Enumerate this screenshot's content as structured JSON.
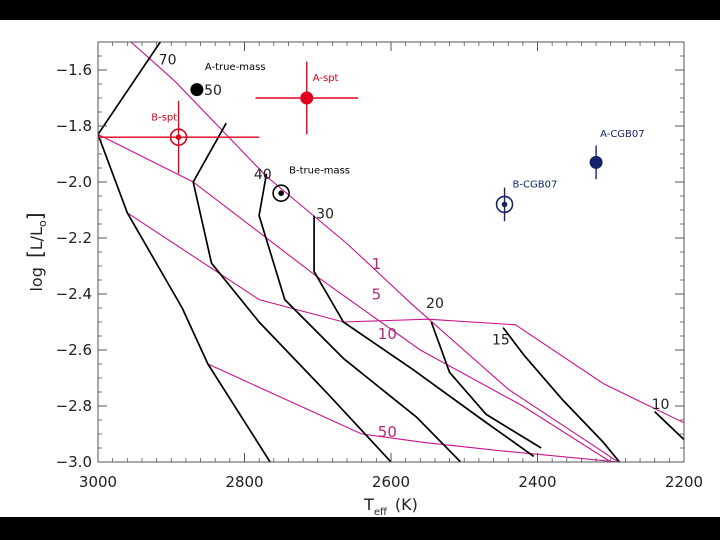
{
  "chart_data": {
    "type": "line",
    "xlabel_main": "T",
    "xlabel_sub": "eff",
    "xlabel_unit": "(K)",
    "ylabel_prefix": "log",
    "ylabel_L": "L",
    "ylabel_slash": "/",
    "ylabel_Lo": "L",
    "ylabel_sun": "o",
    "xlim": [
      3000,
      2200
    ],
    "ylim": [
      -3.0,
      -1.5
    ],
    "x_ticks": [
      3000,
      2800,
      2600,
      2400,
      2200
    ],
    "x_tick_labels": [
      "3000",
      "2800",
      "2600",
      "2400",
      "2200"
    ],
    "y_ticks": [
      -1.6,
      -1.8,
      -2.0,
      -2.2,
      -2.4,
      -2.6,
      -2.8,
      -3.0
    ],
    "y_tick_labels": [
      "−1.6",
      "−1.8",
      "−2.0",
      "−2.2",
      "−2.4",
      "−2.6",
      "−2.8",
      "−3.0"
    ],
    "colors": {
      "tracks": "#000000",
      "isochrones": "#c8148c",
      "isochrone_labels": "#b4287a",
      "spt": "#e0001c",
      "cgb": "#16236b",
      "true_mass": "#000000"
    },
    "mass_tracks": [
      {
        "label": "70",
        "points": [
          [
            2915,
            -1.5
          ],
          [
            3000,
            -1.83
          ],
          [
            2960,
            -2.11
          ],
          [
            2885,
            -2.45
          ],
          [
            2850,
            -2.65
          ],
          [
            2765,
            -3.0
          ]
        ]
      },
      {
        "label": "50",
        "points": [
          [
            2825,
            -1.79
          ],
          [
            2870,
            -2.0
          ],
          [
            2845,
            -2.29
          ],
          [
            2780,
            -2.5
          ],
          [
            2685,
            -2.76
          ],
          [
            2600,
            -3.0
          ]
        ]
      },
      {
        "label": "40",
        "points": [
          [
            2770,
            -1.97
          ],
          [
            2780,
            -2.12
          ],
          [
            2745,
            -2.42
          ],
          [
            2665,
            -2.63
          ],
          [
            2565,
            -2.84
          ],
          [
            2505,
            -3.0
          ]
        ]
      },
      {
        "label": "30",
        "points": [
          [
            2705,
            -2.12
          ],
          [
            2705,
            -2.32
          ],
          [
            2665,
            -2.5
          ],
          [
            2570,
            -2.67
          ],
          [
            2475,
            -2.85
          ],
          [
            2405,
            -2.98
          ]
        ]
      },
      {
        "label": "20",
        "points": [
          [
            2545,
            -2.5
          ],
          [
            2520,
            -2.68
          ],
          [
            2470,
            -2.83
          ],
          [
            2395,
            -2.95
          ]
        ]
      },
      {
        "label": "15",
        "points": [
          [
            2447,
            -2.52
          ],
          [
            2418,
            -2.62
          ],
          [
            2365,
            -2.78
          ],
          [
            2310,
            -2.93
          ],
          [
            2288,
            -3.0
          ]
        ]
      },
      {
        "label": "10",
        "points": [
          [
            2240,
            -2.82
          ],
          [
            2200,
            -2.92
          ]
        ]
      }
    ],
    "isochrones": [
      {
        "label": "1",
        "points": [
          [
            2955,
            -1.5
          ],
          [
            2895,
            -1.64
          ],
          [
            2770,
            -1.98
          ],
          [
            2660,
            -2.22
          ],
          [
            2570,
            -2.44
          ],
          [
            2440,
            -2.74
          ],
          [
            2330,
            -2.93
          ],
          [
            2290,
            -3.0
          ]
        ]
      },
      {
        "label": "5",
        "points": [
          [
            3000,
            -1.83
          ],
          [
            2870,
            -2.0
          ],
          [
            2700,
            -2.34
          ],
          [
            2560,
            -2.6
          ],
          [
            2420,
            -2.8
          ],
          [
            2300,
            -3.0
          ]
        ]
      },
      {
        "label": "10",
        "points": [
          [
            2960,
            -2.11
          ],
          [
            2780,
            -2.42
          ],
          [
            2665,
            -2.5
          ],
          [
            2550,
            -2.49
          ],
          [
            2430,
            -2.51
          ],
          [
            2310,
            -2.72
          ],
          [
            2200,
            -2.86
          ]
        ]
      },
      {
        "label": "50",
        "points": [
          [
            2850,
            -2.65
          ],
          [
            2640,
            -2.9
          ],
          [
            2555,
            -2.93
          ],
          [
            2450,
            -2.96
          ],
          [
            2290,
            -3.0
          ]
        ]
      }
    ],
    "mass_track_labels": [
      {
        "text": "70",
        "x": 2905,
        "y": -1.58
      },
      {
        "text": "50",
        "x": 2843,
        "y": -1.69
      },
      {
        "text": "40",
        "x": 2775,
        "y": -1.99
      },
      {
        "text": "30",
        "x": 2690,
        "y": -2.13
      },
      {
        "text": "20",
        "x": 2540,
        "y": -2.45
      },
      {
        "text": "15",
        "x": 2450,
        "y": -2.58
      },
      {
        "text": "10",
        "x": 2232,
        "y": -2.81
      }
    ],
    "isochrone_label_positions": [
      {
        "text": "1",
        "x": 2620,
        "y": -2.31
      },
      {
        "text": "5",
        "x": 2620,
        "y": -2.42
      },
      {
        "text": "10",
        "x": 2605,
        "y": -2.56
      },
      {
        "text": "50",
        "x": 2605,
        "y": -2.91
      }
    ],
    "objects": [
      {
        "name": "A-spt",
        "x": 2715,
        "y": -1.7,
        "xerr": 70,
        "yerr": 0.13,
        "style": "spt",
        "ring": false,
        "label_x": 2715,
        "label_y": -1.64,
        "label_dx": 6
      },
      {
        "name": "B-spt",
        "x": 2890,
        "y": -1.84,
        "xerr": 110,
        "yerr": 0.13,
        "style": "spt",
        "ring": true,
        "label_x": 2900,
        "label_y": -1.78,
        "label_dx": -20
      },
      {
        "name": "A-true-mass",
        "x": 2865,
        "y": -1.67,
        "xerr": 0,
        "yerr": 0,
        "style": "true_mass",
        "ring": false,
        "label_x": 2865,
        "label_y": -1.6,
        "label_dx": 8
      },
      {
        "name": "B-true-mass",
        "x": 2750,
        "y": -2.04,
        "xerr": 0,
        "yerr": 0,
        "style": "true_mass",
        "ring": true,
        "label_x": 2750,
        "label_y": -1.97,
        "label_dx": 8
      },
      {
        "name": "A-CGB07",
        "x": 2320,
        "y": -1.93,
        "xerr": 0,
        "yerr": 0.06,
        "style": "cgb",
        "ring": false,
        "label_x": 2320,
        "label_y": -1.84,
        "label_dx": 4
      },
      {
        "name": "B-CGB07",
        "x": 2445,
        "y": -2.08,
        "xerr": 0,
        "yerr": 0.06,
        "style": "cgb",
        "ring": true,
        "label_x": 2445,
        "label_y": -2.02,
        "label_dx": 8
      }
    ]
  }
}
